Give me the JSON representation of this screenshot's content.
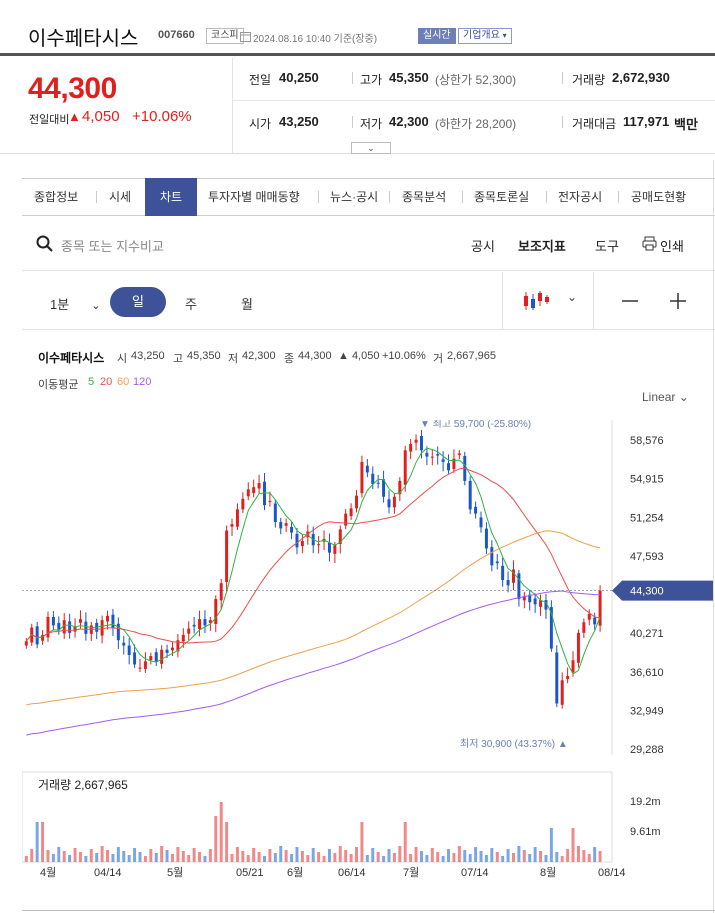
{
  "header": {
    "name": "이수페타시스",
    "code": "007660",
    "market": "코스피",
    "datetime": "2024.08.16 10:40 기준(장중)",
    "realtime": "실시간",
    "company": "기업개요"
  },
  "price": {
    "current": "44,300",
    "change_label": "전일대비",
    "change": "4,050",
    "change_pct": "+10.06%"
  },
  "stats": {
    "prev_label": "전일",
    "prev": "40,250",
    "high_label": "고가",
    "high": "45,350",
    "upper_limit": "(상한가 52,300)",
    "volume_label": "거래량",
    "volume": "2,672,930",
    "open_label": "시가",
    "open": "43,250",
    "low_label": "저가",
    "low": "42,300",
    "lower_limit": "(하한가 28,200)",
    "amount_label": "거래대금",
    "amount": "117,971",
    "amount_unit": "백만"
  },
  "tabs": [
    "종합정보",
    "시세",
    "차트",
    "투자자별 매매동향",
    "뉴스·공시",
    "종목분석",
    "종목토론실",
    "전자공시",
    "공매도현황"
  ],
  "toolbar": {
    "search_placeholder": "종목 또는 지수비교",
    "notice": "공시",
    "indicator": "보조지표",
    "tools": "도구",
    "print": "인쇄"
  },
  "periods": {
    "minute": "1분",
    "day": "일",
    "week": "주",
    "month": "월"
  },
  "chart_info": {
    "name": "이수페타시스",
    "open_lbl": "시",
    "open": "43,250",
    "high_lbl": "고",
    "high": "45,350",
    "low_lbl": "저",
    "low": "42,300",
    "close_lbl": "종",
    "close": "44,300",
    "change": "▲ 4,050",
    "change_pct": "+10.06%",
    "vol_lbl": "거",
    "volume": "2,667,965",
    "ma_label": "이동평균",
    "ma": [
      "5",
      "20",
      "60",
      "120"
    ],
    "scale": "Linear"
  },
  "colors": {
    "up": "#e0201c",
    "down": "#1a56c9",
    "ma5": "#2fb344",
    "ma20": "#e8504c",
    "ma60": "#f0a04a",
    "ma120": "#a05ef0",
    "accent": "#3d5298"
  },
  "chart_data": {
    "type": "candlestick",
    "price_ticks": [
      "58,576",
      "54,915",
      "51,254",
      "47,593",
      "44,300",
      "40,271",
      "36,610",
      "32,949",
      "29,288"
    ],
    "price_ylim": [
      29288,
      58576
    ],
    "current_price": 44300,
    "max_label": "▼ 최고 59,700 (-25.80%)",
    "min_label": "최저 30,900 (43.37%) ▲",
    "volume_label": "거래량",
    "volume_value": "2,667,965",
    "volume_ticks": [
      "19.2m",
      "9.61m"
    ],
    "x_labels": [
      "4월",
      "04/14",
      "5월",
      "05/21",
      "6월",
      "06/14",
      "7월",
      "07/14",
      "8월",
      "08/14"
    ],
    "closes": [
      39500,
      40800,
      39200,
      40100,
      41800,
      41000,
      40600,
      41500,
      40300,
      40900,
      41600,
      40200,
      41000,
      40400,
      41500,
      41900,
      40800,
      39600,
      39100,
      38200,
      37300,
      37000,
      37600,
      38100,
      37600,
      38700,
      38400,
      38900,
      39600,
      40100,
      40700,
      40900,
      41600,
      41000,
      41500,
      43500,
      45000,
      50000,
      50600,
      52000,
      53000,
      53900,
      54100,
      54500,
      52400,
      52800,
      50800,
      50200,
      50700,
      49800,
      48400,
      49000,
      49900,
      48600,
      48700,
      49200,
      47900,
      48600,
      50100,
      51600,
      52100,
      53300,
      56500,
      55500,
      54400,
      54500,
      53200,
      52200,
      53200,
      54700,
      57600,
      58200,
      58600,
      57600,
      57000,
      57000,
      57100,
      56500,
      55700,
      56800,
      57300,
      54700,
      52000,
      51600,
      50300,
      48300,
      46700,
      46900,
      45300,
      44800,
      46300,
      43500,
      43800,
      43200,
      43000,
      43400,
      42500,
      38800,
      33600,
      35800,
      36200,
      37700,
      40300,
      41300,
      42100,
      41100,
      44300
    ]
  }
}
